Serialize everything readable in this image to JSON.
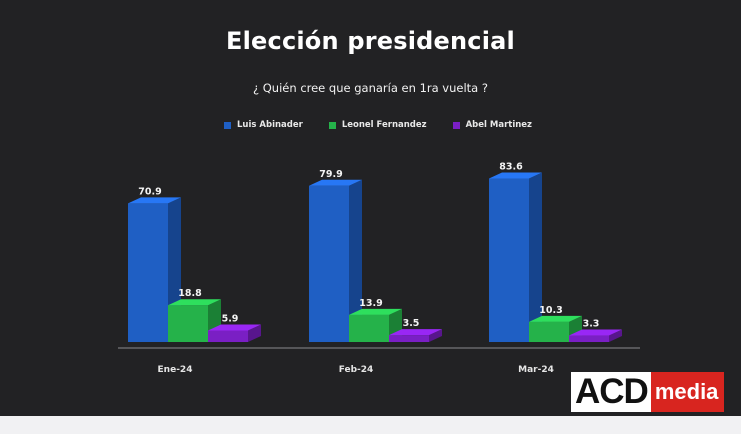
{
  "title": "Elección presidencial",
  "subtitle": "¿ Quién cree que ganaría en 1ra vuelta ?",
  "logo": {
    "part1": "ACD",
    "part2": "media"
  },
  "colors": {
    "background": "#222224",
    "footer": "#f1f1f3"
  },
  "chart_data": {
    "type": "bar",
    "title": "Elección presidencial",
    "subtitle": "¿ Quién cree que ganaría en 1ra vuelta ?",
    "categories": [
      "Ene-24",
      "Feb-24",
      "Mar-24"
    ],
    "series": [
      {
        "name": "Luis Abinader",
        "values": [
          70.9,
          79.9,
          83.6
        ],
        "color": "#1f5fc4"
      },
      {
        "name": "Leonel Fernandez",
        "values": [
          18.8,
          13.9,
          10.3
        ],
        "color": "#25b24a"
      },
      {
        "name": "Abel Martinez",
        "values": [
          5.9,
          3.5,
          3.3
        ],
        "color": "#7a1fc4"
      }
    ],
    "xlabel": "",
    "ylabel": "",
    "ylim": [
      0,
      90
    ],
    "grid": false,
    "legend": "top-center",
    "style": "3d"
  }
}
